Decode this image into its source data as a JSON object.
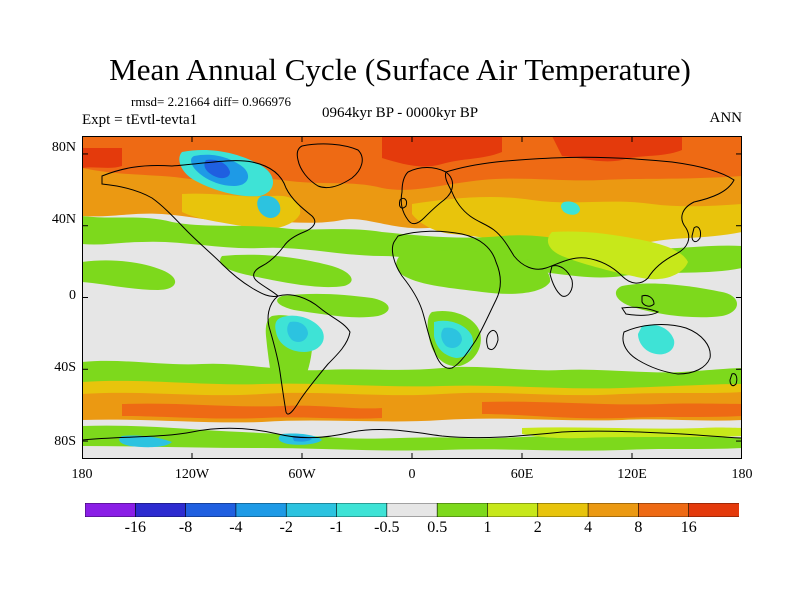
{
  "figure": {
    "title": "Mean Annual Cycle (Surface Air Temperature)",
    "stats": "rmsd= 2.21664 diff= 0.966976",
    "experiment": "Expt = tEvtl-tevta1",
    "period": "0964kyr BP - 0000kyr BP",
    "season": "ANN"
  },
  "axes": {
    "lat_labels": [
      "80N",
      "40N",
      "0",
      "40S",
      "80S"
    ],
    "lat_values": [
      80,
      40,
      0,
      -40,
      -80
    ],
    "lon_labels": [
      "180",
      "120W",
      "60W",
      "0",
      "60E",
      "120E",
      "180"
    ],
    "lon_values": [
      -180,
      -120,
      -60,
      0,
      60,
      120,
      180
    ],
    "lat_range": [
      -90,
      90
    ],
    "lon_range": [
      -180,
      180
    ]
  },
  "colorbar": {
    "labels": [
      "-16",
      "-8",
      "-4",
      "-2",
      "-1",
      "-0.5",
      "0.5",
      "1",
      "2",
      "4",
      "8",
      "16"
    ],
    "colors": [
      "#8a1ee6",
      "#2d2bd0",
      "#1f5fe0",
      "#1e9ae6",
      "#2cc3e0",
      "#3ee3d6",
      "#e6e6e6",
      "#7dd91c",
      "#c7e81a",
      "#e8c40c",
      "#eb9912",
      "#ee6a14",
      "#e43a0c"
    ]
  },
  "palette": {
    "neutral": "#e6e6e6",
    "green": "#7dd91c",
    "yellowgreen": "#c7e81a",
    "gold": "#e8c40c",
    "orange": "#eb9912",
    "darkorange": "#ee6a14",
    "red": "#e43a0c",
    "cyan": "#3ee3d6",
    "lightblue": "#2cc3e0",
    "blue": "#1e9ae6"
  }
}
